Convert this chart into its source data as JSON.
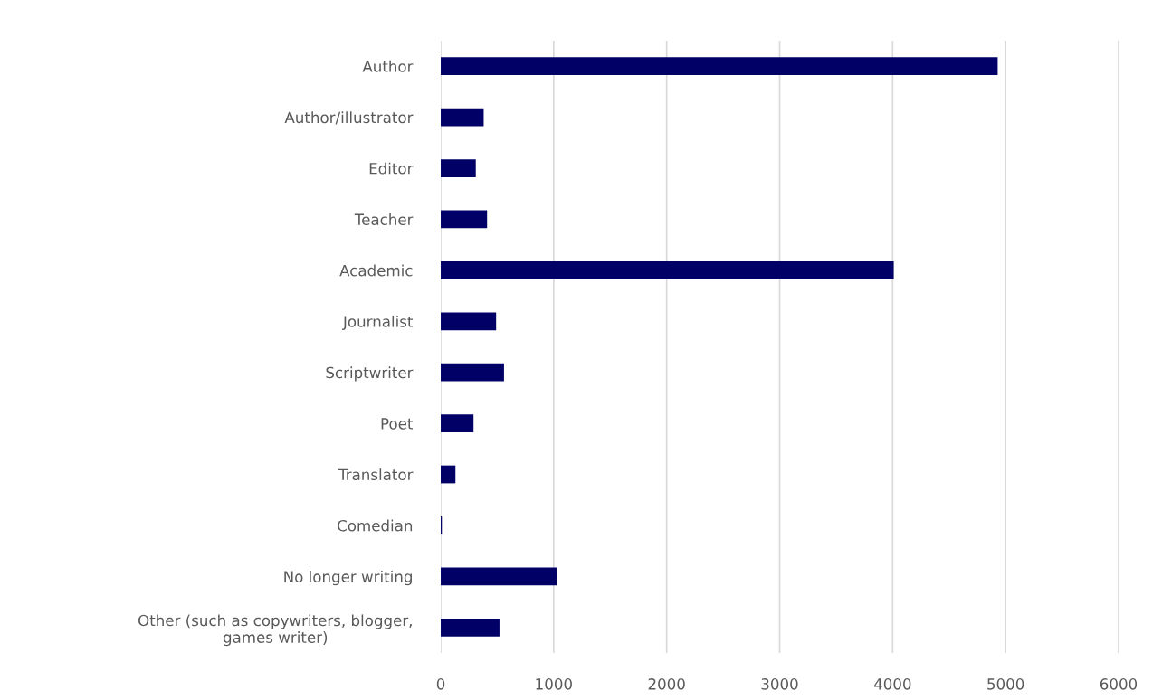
{
  "chart_data": {
    "type": "bar",
    "orientation": "horizontal",
    "categories": [
      "Author",
      "Author/illustrator",
      "Editor",
      "Teacher",
      "Academic",
      "Journalist",
      "Scriptwriter",
      "Poet",
      "Translator",
      "Comedian",
      "No longer writing",
      "Other (such as copywriters, blogger,\ngames writer)"
    ],
    "values": [
      4930,
      380,
      310,
      410,
      4010,
      490,
      560,
      290,
      130,
      10,
      1030,
      520
    ],
    "color": "#000066",
    "xlim": [
      0,
      6000
    ],
    "xticks": [
      0,
      1000,
      2000,
      3000,
      4000,
      5000,
      6000
    ],
    "grid": "x"
  }
}
